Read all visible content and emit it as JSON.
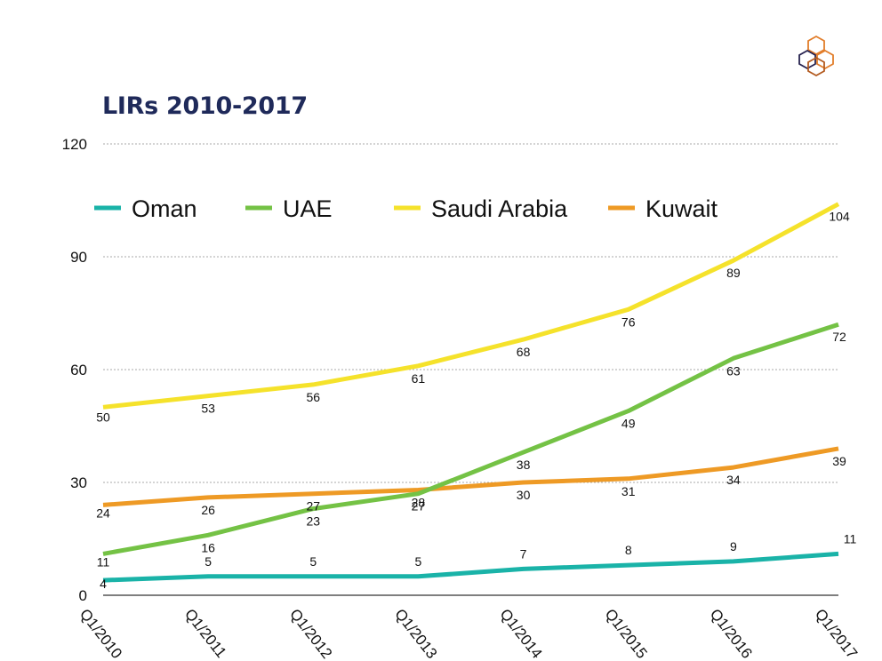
{
  "colors": {
    "title": "#1f2a5a",
    "Oman": "#1ab3a8",
    "UAE": "#74c245",
    "Saudi Arabia": "#f5e22b",
    "Kuwait": "#ee9a25",
    "grid": "#a9a9a9",
    "logo_orange": "#e27d2a",
    "logo_navy": "#26224f"
  },
  "logo": {
    "icon": "hexagon-cube-logo-icon"
  },
  "chart_data": {
    "type": "line",
    "title": "LIRs 2010-2017",
    "xlabel": "",
    "ylabel": "",
    "ylim": [
      0,
      120
    ],
    "yticks": [
      "0",
      "30",
      "60",
      "90",
      "120"
    ],
    "grid": true,
    "legend_position": "top",
    "categories": [
      "Q1/2010",
      "Q1/2011",
      "Q1/2012",
      "Q1/2013",
      "Q1/2014",
      "Q1/2015",
      "Q1/2016",
      "Q1/2017"
    ],
    "series": [
      {
        "name": "Oman",
        "values": [
          4,
          5,
          5,
          5,
          7,
          8,
          9,
          11
        ]
      },
      {
        "name": "UAE",
        "values": [
          11,
          16,
          23,
          27,
          38,
          49,
          63,
          72
        ]
      },
      {
        "name": "Saudi Arabia",
        "values": [
          50,
          53,
          56,
          61,
          68,
          76,
          89,
          104
        ]
      },
      {
        "name": "Kuwait",
        "values": [
          24,
          26,
          27,
          28,
          30,
          31,
          34,
          39
        ]
      }
    ]
  }
}
